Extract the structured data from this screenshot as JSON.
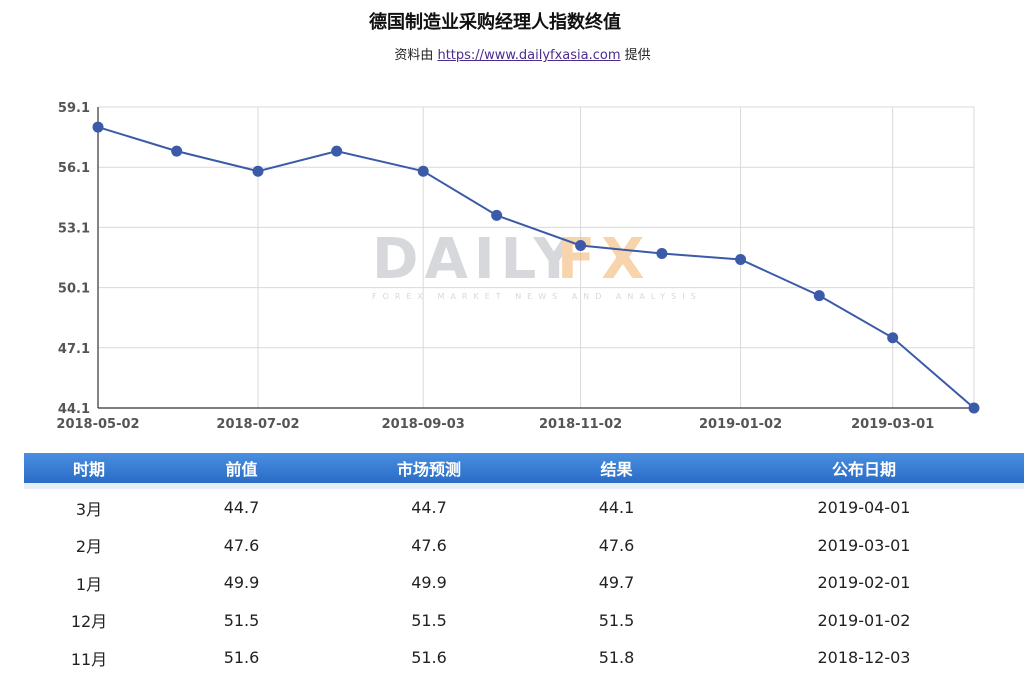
{
  "header": {
    "title": "德国制造业采购经理人指数终值",
    "source_prefix": "资料由",
    "source_link": "https://www.dailyfxasia.com",
    "source_suffix": "提供"
  },
  "chart_data": {
    "type": "line",
    "title": "德国制造业采购经理人指数终值",
    "x_tick_labels": [
      "2018-05-02",
      "2018-07-02",
      "2018-09-03",
      "2018-11-02",
      "2019-01-02",
      "2019-03-01"
    ],
    "x": [
      "2018-05-02",
      "2018-06-01",
      "2018-07-02",
      "2018-08-01",
      "2018-09-03",
      "2018-10-01",
      "2018-11-02",
      "2018-12-03",
      "2019-01-02",
      "2019-02-01",
      "2019-03-01",
      "2019-04-01"
    ],
    "series": [
      {
        "values": [
          58.1,
          56.9,
          55.9,
          56.9,
          55.9,
          53.7,
          52.2,
          51.8,
          51.5,
          49.7,
          47.6,
          44.1
        ]
      }
    ],
    "y_ticks": [
      44.1,
      47.1,
      50.1,
      53.1,
      56.1,
      59.1
    ],
    "ylim": [
      44.1,
      59.1
    ],
    "grid": true,
    "line_color": "#3b5ba8",
    "watermark": {
      "main_left": "DAILY",
      "main_right": "FX",
      "sub": "FOREX MARKET NEWS AND ANALYSIS"
    }
  },
  "table": {
    "headers": [
      "时期",
      "前值",
      "市场预测",
      "结果",
      "公布日期"
    ],
    "rows": [
      [
        "3月",
        "44.7",
        "44.7",
        "44.1",
        "2019-04-01"
      ],
      [
        "2月",
        "47.6",
        "47.6",
        "47.6",
        "2019-03-01"
      ],
      [
        "1月",
        "49.9",
        "49.9",
        "49.7",
        "2019-02-01"
      ],
      [
        "12月",
        "51.5",
        "51.5",
        "51.5",
        "2019-01-02"
      ],
      [
        "11月",
        "51.6",
        "51.6",
        "51.8",
        "2018-12-03"
      ]
    ]
  }
}
